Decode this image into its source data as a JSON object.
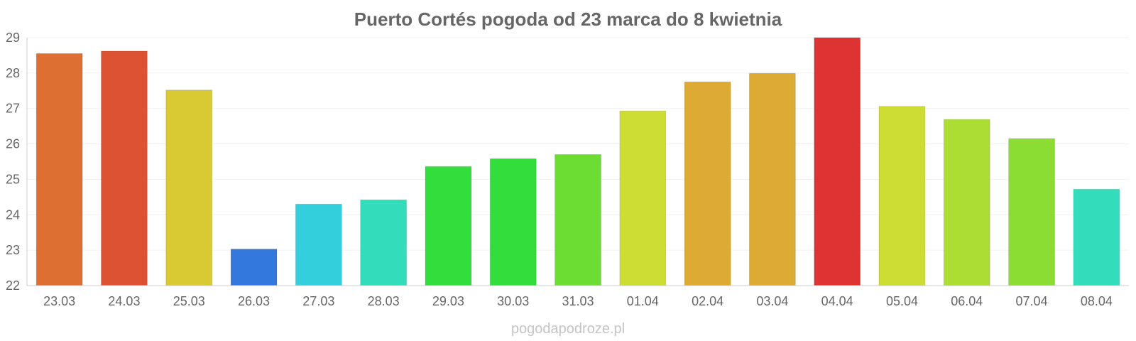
{
  "chart_data": {
    "type": "bar",
    "title": "Puerto Cortés pogoda od 23 marca do 8 kwietnia",
    "xlabel": "",
    "ylabel": "",
    "ylim": [
      22,
      29
    ],
    "y_ticks": [
      "22",
      "23",
      "24",
      "25",
      "26",
      "27",
      "28",
      "29"
    ],
    "grid": true,
    "categories": [
      "23.03",
      "24.03",
      "25.03",
      "26.03",
      "27.03",
      "28.03",
      "29.03",
      "30.03",
      "31.03",
      "01.04",
      "02.04",
      "03.04",
      "04.04",
      "05.04",
      "06.04",
      "07.04",
      "08.04"
    ],
    "values": [
      28.55,
      28.62,
      27.52,
      23.03,
      24.3,
      24.42,
      25.36,
      25.58,
      25.7,
      26.93,
      27.75,
      27.99,
      29.0,
      27.06,
      26.69,
      26.15,
      24.72
    ],
    "colors": [
      "#dd6f33",
      "#dd5233",
      "#d9c933",
      "#3378dd",
      "#33cfdd",
      "#33ddbc",
      "#33dd3b",
      "#33dd3b",
      "#6bdd33",
      "#cddd33",
      "#ddaa33",
      "#ddaa33",
      "#dd3333",
      "#cddd33",
      "#acdd33",
      "#8bdd33",
      "#33ddbc"
    ]
  },
  "watermark": "pogodapodroze.pl"
}
